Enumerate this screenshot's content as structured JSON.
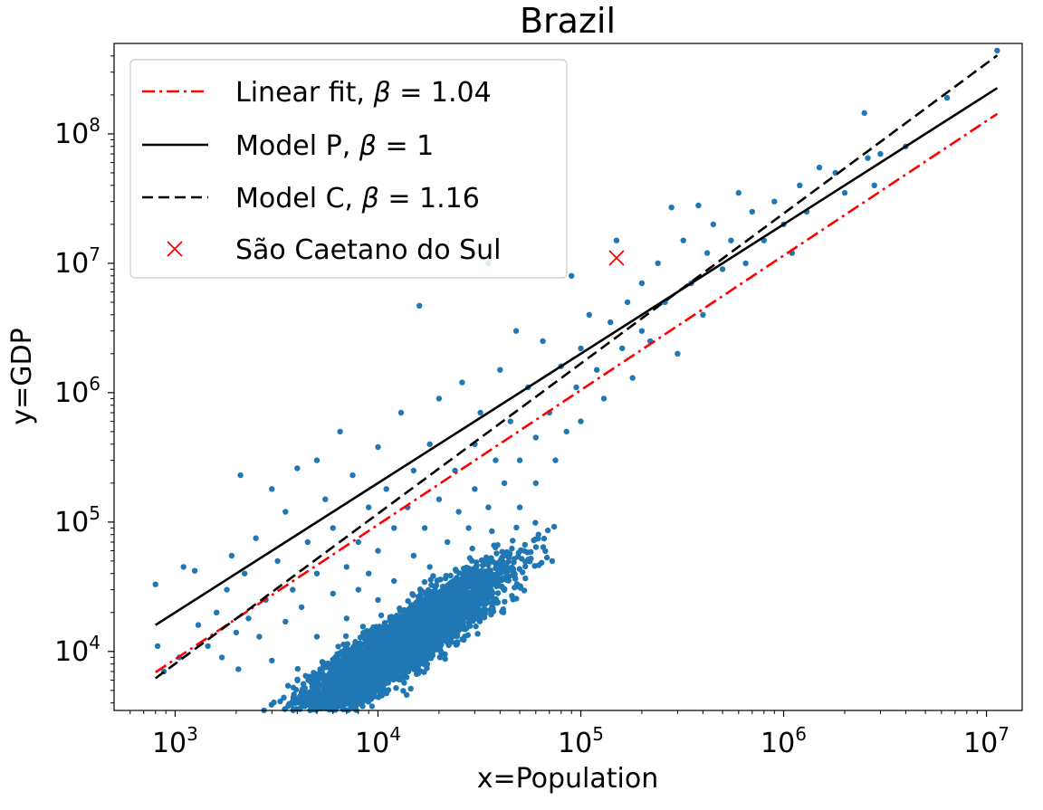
{
  "chart_data": {
    "type": "scatter",
    "title": "Brazil",
    "xlabel": "x=Population",
    "ylabel": "y=GDP",
    "xscale": "log",
    "yscale": "log",
    "xlim": [
      500,
      15000000
    ],
    "ylim": [
      3500,
      500000000
    ],
    "x_ticks": [
      {
        "value": 1000,
        "base": "10",
        "exp": "3"
      },
      {
        "value": 10000,
        "base": "10",
        "exp": "4"
      },
      {
        "value": 100000,
        "base": "10",
        "exp": "5"
      },
      {
        "value": 1000000,
        "base": "10",
        "exp": "6"
      },
      {
        "value": 10000000,
        "base": "10",
        "exp": "7"
      }
    ],
    "y_ticks": [
      {
        "value": 10000,
        "base": "10",
        "exp": "4"
      },
      {
        "value": 100000,
        "base": "10",
        "exp": "5"
      },
      {
        "value": 1000000,
        "base": "10",
        "exp": "6"
      },
      {
        "value": 10000000,
        "base": "10",
        "exp": "7"
      },
      {
        "value": 100000000,
        "base": "10",
        "exp": "8"
      }
    ],
    "grid": false,
    "legend_position": "top-left",
    "scatter_series": {
      "color": "#1f77b4",
      "points": [
        [
          800,
          33000
        ],
        [
          820,
          11000
        ],
        [
          880,
          7000
        ],
        [
          1050,
          9000
        ],
        [
          1100,
          45000
        ],
        [
          1250,
          42000
        ],
        [
          1300,
          16000
        ],
        [
          1450,
          11000
        ],
        [
          1600,
          20000
        ],
        [
          1700,
          9000
        ],
        [
          1800,
          30000
        ],
        [
          1900,
          55000
        ],
        [
          2000,
          14000
        ],
        [
          2050,
          7300
        ],
        [
          2100,
          230000
        ],
        [
          2200,
          40000
        ],
        [
          2300,
          18000
        ],
        [
          2500,
          75000
        ],
        [
          2600,
          13000
        ],
        [
          2800,
          25000
        ],
        [
          3000,
          180000
        ],
        [
          3000,
          8500
        ],
        [
          3200,
          50000
        ],
        [
          3500,
          120000
        ],
        [
          3500,
          17000
        ],
        [
          3800,
          30000
        ],
        [
          4000,
          260000
        ],
        [
          4200,
          22000
        ],
        [
          4500,
          70000
        ],
        [
          5000,
          300000
        ],
        [
          5000,
          40000
        ],
        [
          5000,
          13000
        ],
        [
          5500,
          150000
        ],
        [
          6000,
          28000
        ],
        [
          6000,
          90000
        ],
        [
          6500,
          500000
        ],
        [
          7000,
          45000
        ],
        [
          7000,
          18000
        ],
        [
          7500,
          230000
        ],
        [
          8000,
          70000
        ],
        [
          8000,
          30000
        ],
        [
          9000,
          130000
        ],
        [
          9000,
          40000
        ],
        [
          10000,
          380000
        ],
        [
          10000,
          60000
        ],
        [
          10000,
          25000
        ],
        [
          11000,
          180000
        ],
        [
          12000,
          90000
        ],
        [
          12000,
          35000
        ],
        [
          13000,
          700000
        ],
        [
          14000,
          130000
        ],
        [
          15000,
          55000
        ],
        [
          15000,
          250000
        ],
        [
          16000,
          4700000
        ],
        [
          17000,
          90000
        ],
        [
          18000,
          400000
        ],
        [
          18000,
          45000
        ],
        [
          20000,
          150000
        ],
        [
          20000,
          900000
        ],
        [
          22000,
          70000
        ],
        [
          24000,
          250000
        ],
        [
          25000,
          120000
        ],
        [
          26000,
          1200000
        ],
        [
          28000,
          90000
        ],
        [
          30000,
          400000
        ],
        [
          30000,
          180000
        ],
        [
          32000,
          700000
        ],
        [
          35000,
          130000
        ],
        [
          35000,
          10000000
        ],
        [
          38000,
          300000
        ],
        [
          40000,
          1500000
        ],
        [
          42000,
          200000
        ],
        [
          45000,
          600000
        ],
        [
          48000,
          3000000
        ],
        [
          50000,
          300000
        ],
        [
          50000,
          130000
        ],
        [
          55000,
          1100000
        ],
        [
          60000,
          450000
        ],
        [
          60000,
          200000
        ],
        [
          65000,
          2500000
        ],
        [
          70000,
          700000
        ],
        [
          75000,
          300000
        ],
        [
          80000,
          1600000
        ],
        [
          85000,
          500000
        ],
        [
          90000,
          8000000
        ],
        [
          95000,
          1100000
        ],
        [
          100000,
          2200000
        ],
        [
          100000,
          600000
        ],
        [
          110000,
          4000000
        ],
        [
          120000,
          1500000
        ],
        [
          130000,
          900000
        ],
        [
          140000,
          3500000
        ],
        [
          150000,
          15000000
        ],
        [
          160000,
          2200000
        ],
        [
          170000,
          5000000
        ],
        [
          180000,
          1300000
        ],
        [
          200000,
          7000000
        ],
        [
          200000,
          3000000
        ],
        [
          220000,
          2500000
        ],
        [
          240000,
          10000000
        ],
        [
          260000,
          5000000
        ],
        [
          280000,
          27000000
        ],
        [
          300000,
          2000000
        ],
        [
          320000,
          15000000
        ],
        [
          350000,
          7000000
        ],
        [
          380000,
          28000000
        ],
        [
          400000,
          4000000
        ],
        [
          420000,
          12000000
        ],
        [
          450000,
          20000000
        ],
        [
          500000,
          9000000
        ],
        [
          550000,
          15000000
        ],
        [
          600000,
          35000000
        ],
        [
          650000,
          10000000
        ],
        [
          700000,
          25000000
        ],
        [
          800000,
          15000000
        ],
        [
          900000,
          30000000
        ],
        [
          1000000,
          20000000
        ],
        [
          1100000,
          12000000
        ],
        [
          1200000,
          40000000
        ],
        [
          1300000,
          25000000
        ],
        [
          1500000,
          55000000
        ],
        [
          1800000,
          50000000
        ],
        [
          2000000,
          35000000
        ],
        [
          2500000,
          145000000
        ],
        [
          2600000,
          65000000
        ],
        [
          2800000,
          40000000
        ],
        [
          3000000,
          70000000
        ],
        [
          4000000,
          80000000
        ],
        [
          6400000,
          190000000
        ],
        [
          11300000,
          440000000
        ]
      ],
      "cloud": {
        "count": 5000,
        "x_log_mean": 4.1,
        "x_log_std": 0.5,
        "x_log_min": 2.9,
        "x_log_max": 5.6,
        "intercept": -0.35,
        "slope": 1.07,
        "noise_std": 0.24
      }
    },
    "lines": [
      {
        "name": "Linear fit, β = 1.04",
        "legend_plain": "Linear fit, ",
        "legend_beta": "β",
        "legend_eq": " = 1.04",
        "beta": 1.04,
        "x_range": [
          800,
          11300000
        ],
        "y_at_start": 6900,
        "color": "#ff0000",
        "style": "dashdot"
      },
      {
        "name": "Model P, β = 1",
        "legend_plain": "Model P, ",
        "legend_beta": "β",
        "legend_eq": " = 1",
        "beta": 1.0,
        "x_range": [
          800,
          11300000
        ],
        "y_at_start": 16000,
        "color": "#000000",
        "style": "solid"
      },
      {
        "name": "Model C, β = 1.16",
        "legend_plain": "Model C, ",
        "legend_beta": "β",
        "legend_eq": " = 1.16",
        "beta": 1.16,
        "x_range": [
          800,
          11300000
        ],
        "y_at_start": 6200,
        "color": "#000000",
        "style": "dashed"
      }
    ],
    "highlight": {
      "name": "São Caetano do Sul",
      "x": 150000,
      "y": 11000000,
      "color": "#ff0000",
      "marker": "x"
    }
  }
}
